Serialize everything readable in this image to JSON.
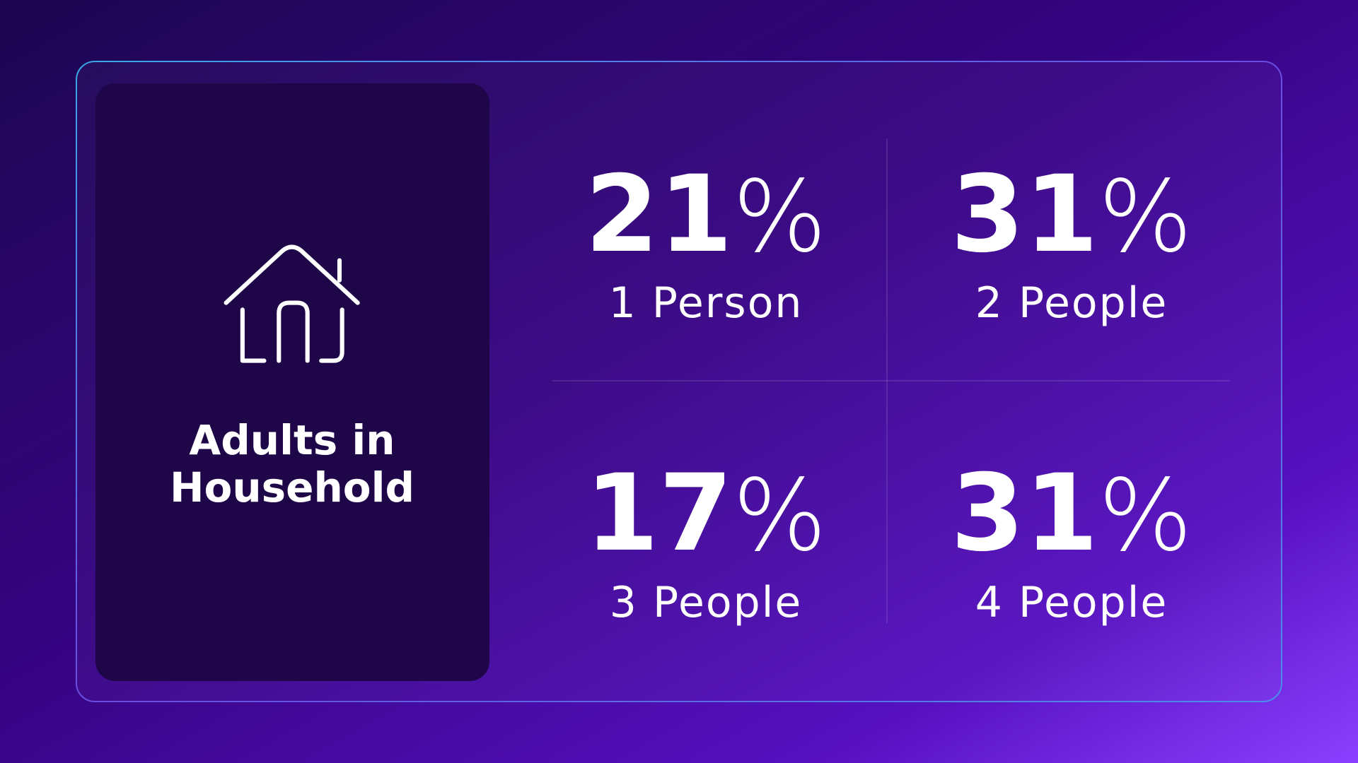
{
  "title": [
    "Adults in",
    "Household"
  ],
  "stats": [
    {
      "number": 21,
      "sign": "%",
      "label": "1 Person"
    },
    {
      "number": 31,
      "sign": "%",
      "label": "2 People"
    },
    {
      "number": 17,
      "sign": "%",
      "label": "3 People"
    },
    {
      "number": 31,
      "sign": "%",
      "label": "4 People"
    }
  ]
}
